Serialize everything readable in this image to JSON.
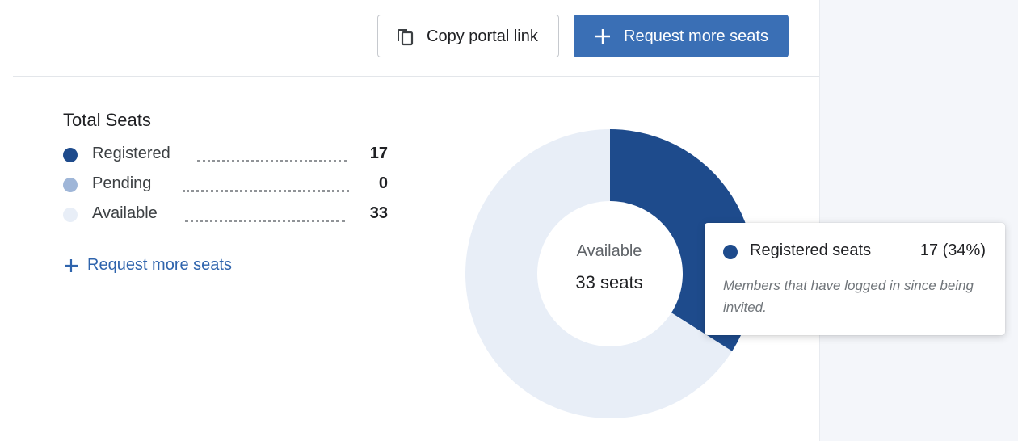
{
  "toolbar": {
    "copy_label": "Copy portal link",
    "copy_icon": "copy-icon",
    "request_label": "Request more seats",
    "request_icon": "plus-icon"
  },
  "seats": {
    "title": "Total Seats",
    "legend": [
      {
        "name": "Registered",
        "value": "17",
        "color": "#1e4b8c"
      },
      {
        "name": "Pending",
        "value": "0",
        "color": "#9fb6d8"
      },
      {
        "name": "Available",
        "value": "33",
        "color": "#e8eef7"
      }
    ],
    "request_link": "Request more seats",
    "request_link_icon": "plus-icon"
  },
  "donut": {
    "center_label": "Available",
    "center_value": "33 seats",
    "segments": [
      {
        "name": "Registered",
        "value": 17,
        "color": "#1e4b8c"
      },
      {
        "name": "Pending",
        "value": 0,
        "color": "#9fb6d8"
      },
      {
        "name": "Available",
        "value": 33,
        "color": "#e8eef7"
      }
    ]
  },
  "tooltip": {
    "name": "Registered seats",
    "value": "17 (34%)",
    "description": "Members that have logged in since being invited.",
    "color": "#1e4b8c"
  }
}
